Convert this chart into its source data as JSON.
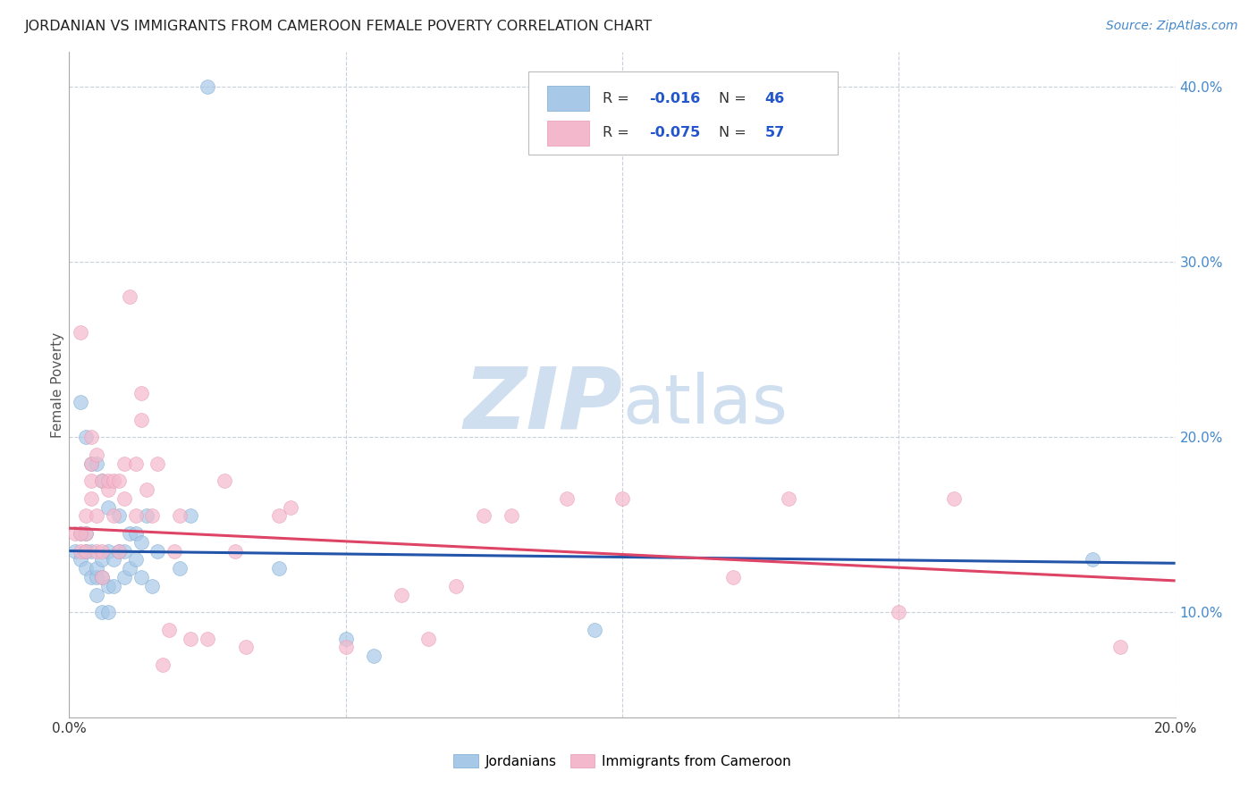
{
  "title": "JORDANIAN VS IMMIGRANTS FROM CAMEROON FEMALE POVERTY CORRELATION CHART",
  "source": "Source: ZipAtlas.com",
  "ylabel": "Female Poverty",
  "xlim": [
    0.0,
    0.2
  ],
  "ylim": [
    0.04,
    0.42
  ],
  "xticks": [
    0.0,
    0.05,
    0.1,
    0.15,
    0.2
  ],
  "xtick_labels": [
    "0.0%",
    "",
    "",
    "",
    "20.0%"
  ],
  "yticks": [
    0.1,
    0.2,
    0.3,
    0.4
  ],
  "ytick_labels": [
    "10.0%",
    "20.0%",
    "30.0%",
    "40.0%"
  ],
  "blue_color": "#a8c8e8",
  "pink_color": "#f4b8cc",
  "blue_line_color": "#2255aa",
  "pink_line_color": "#dd4466",
  "legend_r_blue_label": "R = ",
  "legend_r_blue_val": "-0.016",
  "legend_n_blue_label": "N = ",
  "legend_n_blue_val": "46",
  "legend_r_pink_label": "R = ",
  "legend_r_pink_val": "-0.075",
  "legend_n_pink_label": "N = ",
  "legend_n_pink_val": "57",
  "legend_text_color": "#333333",
  "legend_val_color": "#2255cc",
  "watermark_zip": "ZIP",
  "watermark_atlas": "atlas",
  "watermark_color": "#d0dff0",
  "jordanians_label": "Jordanians",
  "cameroon_label": "Immigrants from Cameroon",
  "blue_scatter_x": [
    0.001,
    0.002,
    0.002,
    0.003,
    0.003,
    0.003,
    0.004,
    0.004,
    0.005,
    0.005,
    0.005,
    0.006,
    0.006,
    0.006,
    0.007,
    0.007,
    0.007,
    0.008,
    0.008,
    0.009,
    0.009,
    0.01,
    0.01,
    0.011,
    0.011,
    0.012,
    0.012,
    0.013,
    0.013,
    0.014,
    0.015,
    0.016,
    0.02,
    0.022,
    0.038,
    0.05,
    0.055,
    0.095,
    0.185,
    0.025,
    0.002,
    0.003,
    0.004,
    0.005,
    0.006,
    0.007
  ],
  "blue_scatter_y": [
    0.135,
    0.13,
    0.145,
    0.125,
    0.135,
    0.145,
    0.12,
    0.135,
    0.11,
    0.12,
    0.125,
    0.1,
    0.12,
    0.13,
    0.1,
    0.115,
    0.135,
    0.115,
    0.13,
    0.135,
    0.155,
    0.12,
    0.135,
    0.125,
    0.145,
    0.13,
    0.145,
    0.12,
    0.14,
    0.155,
    0.115,
    0.135,
    0.125,
    0.155,
    0.125,
    0.085,
    0.075,
    0.09,
    0.13,
    0.4,
    0.22,
    0.2,
    0.185,
    0.185,
    0.175,
    0.16
  ],
  "pink_scatter_x": [
    0.001,
    0.002,
    0.002,
    0.003,
    0.003,
    0.004,
    0.004,
    0.004,
    0.005,
    0.005,
    0.006,
    0.006,
    0.006,
    0.007,
    0.007,
    0.008,
    0.008,
    0.009,
    0.009,
    0.01,
    0.01,
    0.011,
    0.012,
    0.012,
    0.013,
    0.013,
    0.014,
    0.015,
    0.016,
    0.017,
    0.018,
    0.019,
    0.02,
    0.022,
    0.025,
    0.028,
    0.03,
    0.032,
    0.038,
    0.04,
    0.05,
    0.06,
    0.065,
    0.07,
    0.075,
    0.08,
    0.09,
    0.1,
    0.12,
    0.13,
    0.15,
    0.16,
    0.19,
    0.002,
    0.003,
    0.004,
    0.005
  ],
  "pink_scatter_y": [
    0.145,
    0.26,
    0.135,
    0.135,
    0.145,
    0.175,
    0.185,
    0.2,
    0.135,
    0.19,
    0.12,
    0.135,
    0.175,
    0.17,
    0.175,
    0.155,
    0.175,
    0.135,
    0.175,
    0.165,
    0.185,
    0.28,
    0.155,
    0.185,
    0.21,
    0.225,
    0.17,
    0.155,
    0.185,
    0.07,
    0.09,
    0.135,
    0.155,
    0.085,
    0.085,
    0.175,
    0.135,
    0.08,
    0.155,
    0.16,
    0.08,
    0.11,
    0.085,
    0.115,
    0.155,
    0.155,
    0.165,
    0.165,
    0.12,
    0.165,
    0.1,
    0.165,
    0.08,
    0.145,
    0.155,
    0.165,
    0.155
  ],
  "blue_trendline_x": [
    0.0,
    0.2
  ],
  "blue_trendline_y": [
    0.135,
    0.128
  ],
  "pink_trendline_x": [
    0.0,
    0.2
  ],
  "pink_trendline_y": [
    0.148,
    0.118
  ],
  "scatter_size": 130,
  "right_yaxis_color": "#4488cc",
  "grid_color": "#c8d0dc",
  "bottom_axis_color": "#aaaaaa"
}
